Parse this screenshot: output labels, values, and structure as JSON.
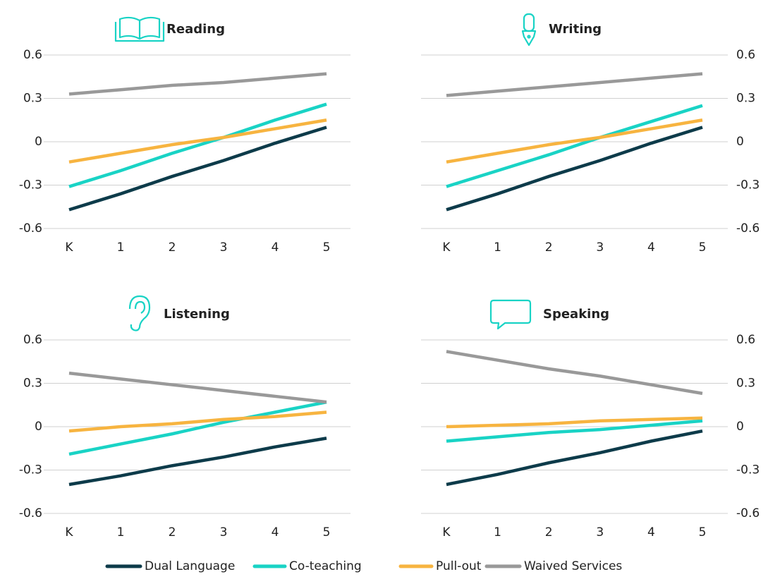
{
  "chart_data": [
    {
      "type": "line",
      "title": "Reading",
      "categories": [
        "K",
        "1",
        "2",
        "3",
        "4",
        "5"
      ],
      "ylim": [
        -0.6,
        0.6
      ],
      "yticks": [
        0.6,
        0.3,
        0,
        -0.3,
        -0.6
      ],
      "grid": true,
      "series": [
        {
          "name": "Dual Language",
          "color": "#0d3b4a",
          "values": [
            -0.47,
            -0.36,
            -0.24,
            -0.13,
            -0.01,
            0.1
          ]
        },
        {
          "name": "Co-teaching",
          "color": "#19d3c5",
          "values": [
            -0.31,
            -0.2,
            -0.08,
            0.03,
            0.15,
            0.26
          ]
        },
        {
          "name": "Pull-out",
          "color": "#f7b440",
          "values": [
            -0.14,
            -0.08,
            -0.02,
            0.03,
            0.09,
            0.15
          ]
        },
        {
          "name": "Waived Services",
          "color": "#999999",
          "values": [
            0.33,
            0.36,
            0.39,
            0.41,
            0.44,
            0.47
          ]
        }
      ]
    },
    {
      "type": "line",
      "title": "Writing",
      "categories": [
        "K",
        "1",
        "2",
        "3",
        "4",
        "5"
      ],
      "ylim": [
        -0.6,
        0.6
      ],
      "yticks": [
        0.6,
        0.3,
        0,
        -0.3,
        -0.6
      ],
      "grid": true,
      "series": [
        {
          "name": "Dual Language",
          "color": "#0d3b4a",
          "values": [
            -0.47,
            -0.36,
            -0.24,
            -0.13,
            -0.01,
            0.1
          ]
        },
        {
          "name": "Co-teaching",
          "color": "#19d3c5",
          "values": [
            -0.31,
            -0.2,
            -0.09,
            0.03,
            0.14,
            0.25
          ]
        },
        {
          "name": "Pull-out",
          "color": "#f7b440",
          "values": [
            -0.14,
            -0.08,
            -0.02,
            0.03,
            0.09,
            0.15
          ]
        },
        {
          "name": "Waived Services",
          "color": "#999999",
          "values": [
            0.32,
            0.35,
            0.38,
            0.41,
            0.44,
            0.47
          ]
        }
      ]
    },
    {
      "type": "line",
      "title": "Listening",
      "categories": [
        "K",
        "1",
        "2",
        "3",
        "4",
        "5"
      ],
      "ylim": [
        -0.6,
        0.6
      ],
      "yticks": [
        0.6,
        0.3,
        0,
        -0.3,
        -0.6
      ],
      "grid": true,
      "series": [
        {
          "name": "Dual Language",
          "color": "#0d3b4a",
          "values": [
            -0.4,
            -0.34,
            -0.27,
            -0.21,
            -0.14,
            -0.08
          ]
        },
        {
          "name": "Co-teaching",
          "color": "#19d3c5",
          "values": [
            -0.19,
            -0.12,
            -0.05,
            0.03,
            0.1,
            0.17
          ]
        },
        {
          "name": "Pull-out",
          "color": "#f7b440",
          "values": [
            -0.03,
            0,
            0.02,
            0.05,
            0.07,
            0.1
          ]
        },
        {
          "name": "Waived Services",
          "color": "#999999",
          "values": [
            0.37,
            0.33,
            0.29,
            0.25,
            0.21,
            0.17
          ]
        }
      ]
    },
    {
      "type": "line",
      "title": "Speaking",
      "categories": [
        "K",
        "1",
        "2",
        "3",
        "4",
        "5"
      ],
      "ylim": [
        -0.6,
        0.6
      ],
      "yticks": [
        0.6,
        0.3,
        0,
        -0.3,
        -0.6
      ],
      "grid": true,
      "series": [
        {
          "name": "Dual Language",
          "color": "#0d3b4a",
          "values": [
            -0.4,
            -0.33,
            -0.25,
            -0.18,
            -0.1,
            -0.03
          ]
        },
        {
          "name": "Co-teaching",
          "color": "#19d3c5",
          "values": [
            -0.1,
            -0.07,
            -0.04,
            -0.02,
            0.01,
            0.04
          ]
        },
        {
          "name": "Pull-out",
          "color": "#f7b440",
          "values": [
            0,
            0.01,
            0.02,
            0.04,
            0.05,
            0.06
          ]
        },
        {
          "name": "Waived Services",
          "color": "#999999",
          "values": [
            0.52,
            0.46,
            0.4,
            0.35,
            0.29,
            0.23
          ]
        }
      ]
    }
  ]
}
